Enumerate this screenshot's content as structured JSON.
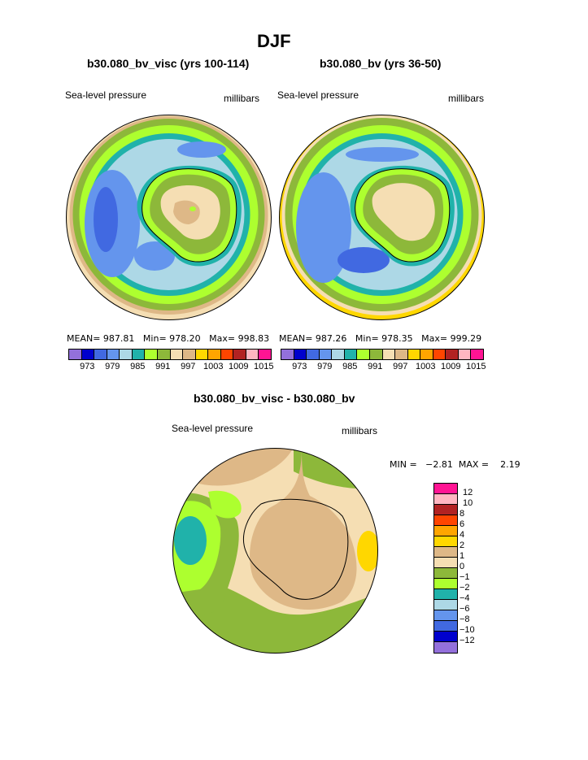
{
  "title": "DJF",
  "panels": [
    {
      "heading": "b30.080_bv_visc (yrs 100-114)",
      "left_label": "Sea-level pressure",
      "right_label": "millibars",
      "stats": {
        "mean_label": "MEAN=",
        "mean": "987.81",
        "min_label": "Min=",
        "min": "978.20",
        "max_label": "Max=",
        "max": "998.83"
      }
    },
    {
      "heading": "b30.080_bv (yrs 36-50)",
      "left_label": "Sea-level pressure",
      "right_label": "millibars",
      "stats": {
        "mean_label": "MEAN=",
        "mean": "987.26",
        "min_label": "Min=",
        "min": "978.35",
        "max_label": "Max=",
        "max": "999.29"
      }
    }
  ],
  "top_colorbar": {
    "colors": [
      "#9370db",
      "#0000cd",
      "#4169e1",
      "#6495ed",
      "#add8e6",
      "#20b2aa",
      "#adff2f",
      "#8db83a",
      "#f5deb3",
      "#deb887",
      "#ffd700",
      "#ffa500",
      "#ff4500",
      "#b22222",
      "#ffb6c1",
      "#ff1493"
    ],
    "labels": [
      "973",
      "979",
      "985",
      "991",
      "997",
      "1003",
      "1009",
      "1015"
    ]
  },
  "diff_panel": {
    "heading": "b30.080_bv_visc - b30.080_bv",
    "left_label": "Sea-level pressure",
    "right_label": "millibars",
    "stats": "MIN =   −2.81  MAX =    2.19"
  },
  "diff_colorbar": {
    "colors": [
      "#ff1493",
      "#ffb6c1",
      "#b22222",
      "#ff4500",
      "#ffa500",
      "#ffd700",
      "#deb887",
      "#f5deb3",
      "#8db83a",
      "#adff2f",
      "#20b2aa",
      "#add8e6",
      "#6495ed",
      "#4169e1",
      "#0000cd",
      "#9370db"
    ],
    "labels": [
      "12",
      "10",
      "8",
      "6",
      "4",
      "2",
      "1",
      "0",
      "−1",
      "−2",
      "−4",
      "−6",
      "−8",
      "−10",
      "−12"
    ]
  }
}
